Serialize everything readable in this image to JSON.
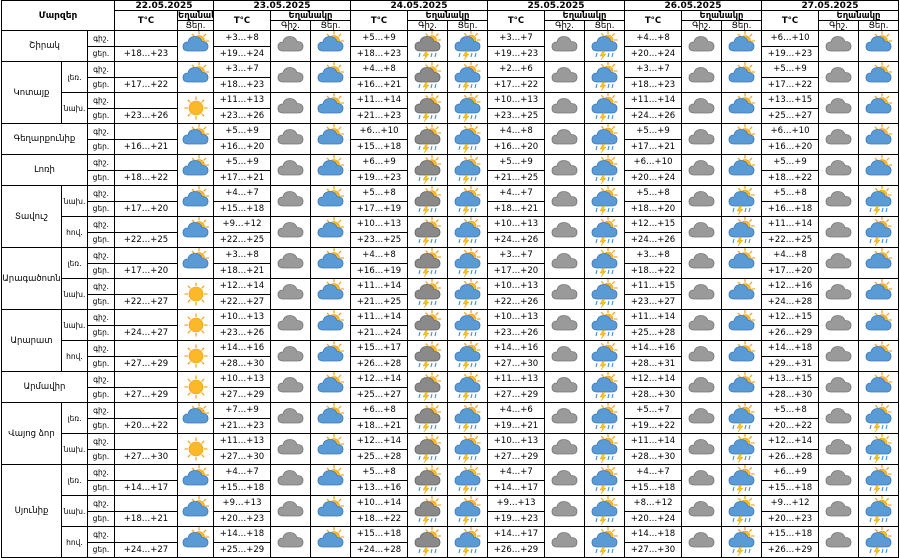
{
  "header": {
    "region_label": "Մարզեր",
    "temp_label": "T°C",
    "weather_label": "Եղանակը",
    "day_label": "Ցեր.",
    "night_label": "Գիշ.",
    "dates": [
      "22.05.2025",
      "23.05.2025",
      "24.05.2025",
      "25.05.2025",
      "26.05.2025",
      "27.05.2025"
    ]
  },
  "icon_legend": {
    "s": "sun",
    "p": "partly-cloudy",
    "c": "cloudy",
    "r": "cloud-lightning-rain",
    "q": "partly-cloudy-lightning-rain"
  },
  "regions": [
    {
      "name": "Շիրակ",
      "parts": [
        {
          "rows": [
            {
              "label": "գիշ.",
              "t": [
                "",
                "+3…+8",
                "+5…+9",
                "+3…+7",
                "+4…+8",
                "+6…+10"
              ],
              "w": [
                "",
                "c",
                "r",
                "c",
                "c",
                "c"
              ]
            },
            {
              "label": "ցեր.",
              "t": [
                "+18…+23",
                "+19…+24",
                "+18…+23",
                "+19…+23",
                "+20…+24",
                "+19…+23"
              ],
              "w": [
                "p",
                "p",
                "q",
                "q",
                "p",
                "p"
              ]
            }
          ]
        }
      ]
    },
    {
      "name": "Կոտայք",
      "parts": [
        {
          "label": "լեռ.",
          "rows": [
            {
              "label": "գիշ.",
              "t": [
                "",
                "+3…+7",
                "+4…+8",
                "+2…+6",
                "+3…+7",
                "+5…+9"
              ],
              "w": [
                "",
                "c",
                "r",
                "c",
                "c",
                "c"
              ]
            },
            {
              "label": "ցեր.",
              "t": [
                "+17…+22",
                "+18…+23",
                "+16…+21",
                "+17…+22",
                "+18…+23",
                "+17…+22"
              ],
              "w": [
                "p",
                "p",
                "q",
                "q",
                "p",
                "p"
              ]
            }
          ]
        },
        {
          "label": "նախ.",
          "rows": [
            {
              "label": "գիշ.",
              "t": [
                "",
                "+11…+13",
                "+11…+14",
                "+10…+13",
                "+11…+14",
                "+13…+15"
              ],
              "w": [
                "",
                "c",
                "r",
                "c",
                "c",
                "c"
              ]
            },
            {
              "label": "ցեր.",
              "t": [
                "+23…+26",
                "+23…+26",
                "+21…+23",
                "+23…+25",
                "+24…+26",
                "+25…+27"
              ],
              "w": [
                "s",
                "p",
                "q",
                "q",
                "p",
                "p"
              ]
            }
          ]
        }
      ]
    },
    {
      "name": "Գեղարքունիք",
      "parts": [
        {
          "rows": [
            {
              "label": "գիշ.",
              "t": [
                "",
                "+5…+9",
                "+6…+10",
                "+4…+8",
                "+5…+9",
                "+6…+10"
              ],
              "w": [
                "",
                "c",
                "r",
                "c",
                "c",
                "c"
              ]
            },
            {
              "label": "ցեր.",
              "t": [
                "+16…+21",
                "+16…+20",
                "+15…+18",
                "+16…+20",
                "+17…+21",
                "+16…+20"
              ],
              "w": [
                "p",
                "p",
                "q",
                "q",
                "p",
                "p"
              ]
            }
          ]
        }
      ]
    },
    {
      "name": "Լոռի",
      "parts": [
        {
          "rows": [
            {
              "label": "գիշ.",
              "t": [
                "",
                "+5…+9",
                "+6…+9",
                "+5…+9",
                "+6…+10",
                "+5…+9"
              ],
              "w": [
                "",
                "c",
                "r",
                "c",
                "c",
                "c"
              ]
            },
            {
              "label": "ցեր.",
              "t": [
                "+18…+22",
                "+17…+21",
                "+19…+23",
                "+21…+25",
                "+20…+24",
                "+18…+22"
              ],
              "w": [
                "p",
                "p",
                "q",
                "q",
                "p",
                "p"
              ]
            }
          ]
        }
      ]
    },
    {
      "name": "Տավուշ",
      "parts": [
        {
          "label": "նախ.",
          "rows": [
            {
              "label": "գիշ.",
              "t": [
                "",
                "+4…+7",
                "+5…+8",
                "+4…+7",
                "+5…+8",
                "+5…+8"
              ],
              "w": [
                "",
                "c",
                "r",
                "c",
                "c",
                "c"
              ]
            },
            {
              "label": "ցեր.",
              "t": [
                "+17…+20",
                "+15…+18",
                "+17…+19",
                "+18…+21",
                "+18…+20",
                "+16…+18"
              ],
              "w": [
                "p",
                "p",
                "q",
                "q",
                "q",
                "q"
              ]
            }
          ]
        },
        {
          "label": "հով.",
          "rows": [
            {
              "label": "գիշ.",
              "t": [
                "",
                "+9…+12",
                "+10…+13",
                "+10…+13",
                "+12…+15",
                "+11…+14"
              ],
              "w": [
                "",
                "c",
                "r",
                "c",
                "c",
                "c"
              ]
            },
            {
              "label": "ցեր.",
              "t": [
                "+22…+25",
                "+22…+25",
                "+23…+25",
                "+24…+26",
                "+24…+26",
                "+22…+25"
              ],
              "w": [
                "p",
                "p",
                "q",
                "q",
                "q",
                "q"
              ]
            }
          ]
        }
      ]
    },
    {
      "name": "Արագածոտն",
      "parts": [
        {
          "label": "լեռ.",
          "rows": [
            {
              "label": "գիշ.",
              "t": [
                "",
                "+3…+8",
                "+4…+8",
                "+3…+7",
                "+3…+8",
                "+4…+8"
              ],
              "w": [
                "",
                "c",
                "r",
                "c",
                "c",
                "c"
              ]
            },
            {
              "label": "ցեր.",
              "t": [
                "+17…+20",
                "+18…+21",
                "+16…+19",
                "+17…+20",
                "+18…+22",
                "+17…+20"
              ],
              "w": [
                "p",
                "p",
                "q",
                "q",
                "p",
                "p"
              ]
            }
          ]
        },
        {
          "label": "նախ.",
          "rows": [
            {
              "label": "գիշ.",
              "t": [
                "",
                "+12…+14",
                "+11…+14",
                "+10…+13",
                "+11…+15",
                "+12…+16"
              ],
              "w": [
                "",
                "c",
                "r",
                "c",
                "c",
                "c"
              ]
            },
            {
              "label": "ցեր.",
              "t": [
                "+22…+27",
                "+22…+27",
                "+21…+25",
                "+22…+26",
                "+23…+27",
                "+24…+28"
              ],
              "w": [
                "s",
                "p",
                "q",
                "q",
                "p",
                "p"
              ]
            }
          ]
        }
      ]
    },
    {
      "name": "Արարատ",
      "parts": [
        {
          "label": "նախ.",
          "rows": [
            {
              "label": "գիշ.",
              "t": [
                "",
                "+10…+13",
                "+11…+14",
                "+10…+13",
                "+11…+14",
                "+12…+15"
              ],
              "w": [
                "",
                "c",
                "r",
                "c",
                "c",
                "c"
              ]
            },
            {
              "label": "ցեր.",
              "t": [
                "+24…+27",
                "+23…+26",
                "+21…+24",
                "+23…+26",
                "+25…+28",
                "+26…+29"
              ],
              "w": [
                "s",
                "p",
                "q",
                "q",
                "p",
                "p"
              ]
            }
          ]
        },
        {
          "label": "հով.",
          "rows": [
            {
              "label": "գիշ.",
              "t": [
                "",
                "+14…+16",
                "+15…+17",
                "+14…+16",
                "+14…+16",
                "+14…+18"
              ],
              "w": [
                "",
                "c",
                "r",
                "c",
                "c",
                "c"
              ]
            },
            {
              "label": "ցեր.",
              "t": [
                "+27…+29",
                "+28…+30",
                "+26…+28",
                "+27…+30",
                "+28…+31",
                "+29…+31"
              ],
              "w": [
                "s",
                "p",
                "q",
                "q",
                "p",
                "p"
              ]
            }
          ]
        }
      ]
    },
    {
      "name": "Արմավիր",
      "parts": [
        {
          "rows": [
            {
              "label": "գիշ.",
              "t": [
                "",
                "+10…+13",
                "+12…+14",
                "+11…+13",
                "+12…+14",
                "+13…+15"
              ],
              "w": [
                "",
                "c",
                "r",
                "c",
                "c",
                "c"
              ]
            },
            {
              "label": "ցեր.",
              "t": [
                "+27…+29",
                "+27…+29",
                "+25…+27",
                "+27…+29",
                "+28…+30",
                "+28…+30"
              ],
              "w": [
                "s",
                "p",
                "q",
                "q",
                "p",
                "p"
              ]
            }
          ]
        }
      ]
    },
    {
      "name": "Վայոց ձոր",
      "parts": [
        {
          "label": "լեռ.",
          "rows": [
            {
              "label": "գիշ.",
              "t": [
                "",
                "+7…+9",
                "+6…+8",
                "+4…+6",
                "+5…+7",
                "+5…+8"
              ],
              "w": [
                "",
                "c",
                "r",
                "c",
                "c",
                "c"
              ]
            },
            {
              "label": "ցեր.",
              "t": [
                "+20…+22",
                "+21…+23",
                "+18…+21",
                "+19…+21",
                "+19…+22",
                "+20…+22"
              ],
              "w": [
                "p",
                "p",
                "q",
                "q",
                "q",
                "q"
              ]
            }
          ]
        },
        {
          "label": "նախ.",
          "rows": [
            {
              "label": "գիշ.",
              "t": [
                "",
                "+11…+13",
                "+12…+14",
                "+10…+13",
                "+11…+14",
                "+12…+14"
              ],
              "w": [
                "",
                "c",
                "r",
                "c",
                "c",
                "c"
              ]
            },
            {
              "label": "ցեր.",
              "t": [
                "+27…+30",
                "+27…+30",
                "+25…+28",
                "+27…+29",
                "+28…+30",
                "+26…+28"
              ],
              "w": [
                "s",
                "p",
                "q",
                "q",
                "q",
                "q"
              ]
            }
          ]
        }
      ]
    },
    {
      "name": "Սյունիք",
      "parts": [
        {
          "label": "լեռ.",
          "rows": [
            {
              "label": "գիշ.",
              "t": [
                "",
                "+4…+7",
                "+5…+8",
                "+4…+7",
                "+4…+7",
                "+6…+9"
              ],
              "w": [
                "",
                "c",
                "r",
                "c",
                "c",
                "c"
              ]
            },
            {
              "label": "ցեր.",
              "t": [
                "+14…+17",
                "+15…+18",
                "+13…+16",
                "+14…+17",
                "+15…+18",
                "+15…+18"
              ],
              "w": [
                "p",
                "p",
                "q",
                "q",
                "q",
                "q"
              ]
            }
          ]
        },
        {
          "label": "նախ.",
          "rows": [
            {
              "label": "գիշ.",
              "t": [
                "",
                "+9…+13",
                "+10…+14",
                "+9…+13",
                "+8…+12",
                "+9…+12"
              ],
              "w": [
                "",
                "c",
                "r",
                "c",
                "c",
                "c"
              ]
            },
            {
              "label": "ցեր.",
              "t": [
                "+18…+21",
                "+20…+23",
                "+18…+22",
                "+19…+23",
                "+20…+24",
                "+20…+23"
              ],
              "w": [
                "p",
                "p",
                "q",
                "q",
                "q",
                "q"
              ]
            }
          ]
        },
        {
          "label": "հով.",
          "rows": [
            {
              "label": "գիշ.",
              "t": [
                "",
                "+14…+18",
                "+15…+18",
                "+14…+17",
                "+14…+18",
                "+15…+18"
              ],
              "w": [
                "",
                "c",
                "r",
                "c",
                "c",
                "c"
              ]
            },
            {
              "label": "ցեր.",
              "t": [
                "+24…+27",
                "+25…+29",
                "+24…+28",
                "+26…+29",
                "+27…+30",
                "+26…+29"
              ],
              "w": [
                "p",
                "p",
                "q",
                "q",
                "q",
                "q"
              ]
            }
          ]
        }
      ]
    }
  ]
}
